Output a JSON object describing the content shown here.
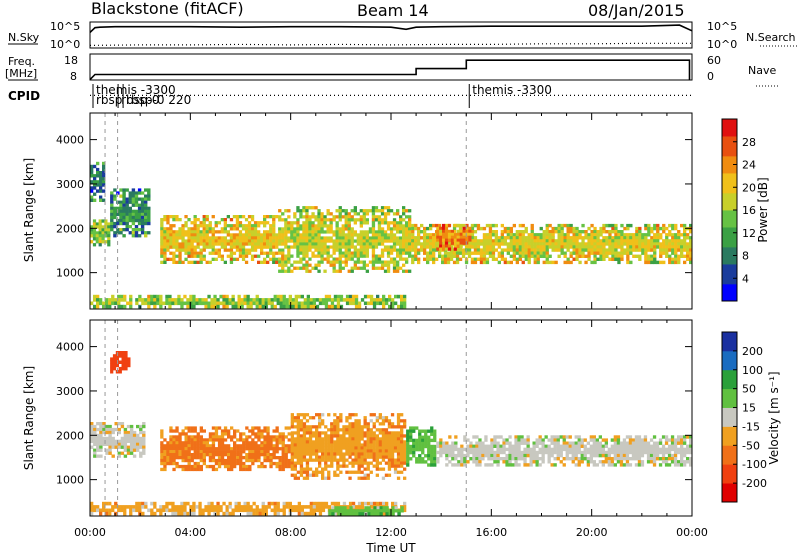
{
  "figure": {
    "station": "Blackstone (fitACF)",
    "beam": "Beam 14",
    "date": "08/Jan/2015"
  },
  "chart_data": [
    {
      "type": "line",
      "panel": "noise",
      "left_label": "N.Sky",
      "right_label": "N.Search",
      "y_ticks": [
        "10^5",
        "10^0"
      ],
      "right_ticks": [
        "10^5",
        "10^0"
      ],
      "x_range_hours": [
        0,
        24
      ],
      "series": [
        {
          "name": "N.Sky",
          "style": "solid",
          "x": [
            0,
            0.2,
            0.4,
            1,
            2,
            4,
            6,
            8,
            10,
            12,
            12.6,
            13,
            14,
            16,
            18,
            20,
            22,
            23.5,
            24
          ],
          "values": [
            3.0,
            3.9,
            4.0,
            4.1,
            4.1,
            4.1,
            4.0,
            4.1,
            4.1,
            4.0,
            3.6,
            4.0,
            4.1,
            4.2,
            4.2,
            4.2,
            4.2,
            4.4,
            3.3
          ]
        },
        {
          "name": "N.Search",
          "style": "dotted",
          "x": [
            0,
            2,
            4,
            6,
            8,
            10,
            12,
            14,
            16,
            18,
            20,
            22,
            24
          ],
          "values": [
            0.5,
            0.6,
            0.6,
            0.7,
            0.6,
            0.7,
            0.6,
            0.7,
            0.7,
            0.8,
            0.8,
            0.9,
            0.9
          ]
        }
      ]
    },
    {
      "type": "line",
      "panel": "frequency",
      "left_label": "Freq. [MHz]",
      "right_label": "Nave",
      "y_ticks": [
        "18",
        "8"
      ],
      "right_ticks": [
        "60",
        "0"
      ],
      "x_range_hours": [
        0,
        24
      ],
      "series": [
        {
          "name": "Freq.",
          "style": "solid",
          "x": [
            0,
            0.2,
            13,
            13,
            15,
            15,
            23.9,
            23.9
          ],
          "values": [
            8.2,
            10.5,
            10.5,
            13.2,
            13.2,
            17.0,
            17.0,
            8.0
          ]
        },
        {
          "name": "Nave",
          "style": "dotted",
          "x": [
            0,
            24
          ],
          "values": [
            1,
            1
          ]
        }
      ]
    },
    {
      "type": "table",
      "panel": "cpid",
      "label": "CPID",
      "markers": [
        {
          "time_h": 0.0,
          "text": "themis -3300"
        },
        {
          "time_h": 0.0,
          "text": "rbsp"
        },
        {
          "time_h": 1.0,
          "text": "rbsp-0"
        },
        {
          "time_h": 1.2,
          "text": "rbsp-0 220"
        },
        {
          "time_h": 15.0,
          "text": "themis -3300"
        }
      ]
    },
    {
      "type": "heatmap",
      "panel": "power",
      "ylabel": "Slant Range [km]",
      "ylim": [
        180,
        4600
      ],
      "y_ticks": [
        1000,
        2000,
        3000,
        4000
      ],
      "xlim": [
        0,
        24
      ],
      "colorbar_label": "Power [dB]",
      "colorbar_ticks": [
        4,
        8,
        12,
        16,
        20,
        24,
        28
      ],
      "colorbar_range": [
        0,
        32
      ],
      "vertical_lines_h": [
        0.6,
        1.1,
        15.0
      ],
      "bands": [
        {
          "x": [
            0.0,
            0.8
          ],
          "y": [
            1600,
            2200
          ],
          "value": 14
        },
        {
          "x": [
            0.8,
            2.4
          ],
          "y": [
            1800,
            2900
          ],
          "value": 10
        },
        {
          "x": [
            2.8,
            7.5
          ],
          "y": [
            1200,
            2300
          ],
          "value": 20
        },
        {
          "x": [
            7.5,
            12.8
          ],
          "y": [
            1000,
            2500
          ],
          "value": 18
        },
        {
          "x": [
            12.8,
            24.0
          ],
          "y": [
            1200,
            2100
          ],
          "value": 19
        },
        {
          "x": [
            0.0,
            12.6
          ],
          "y": [
            200,
            500
          ],
          "value": 16
        },
        {
          "x": [
            0.0,
            0.6
          ],
          "y": [
            2600,
            3500
          ],
          "value": 8
        },
        {
          "x": [
            13.8,
            15.2
          ],
          "y": [
            1500,
            2100
          ],
          "value": 24
        }
      ]
    },
    {
      "type": "heatmap",
      "panel": "velocity",
      "ylabel": "Slant Range [km]",
      "ylim": [
        180,
        4600
      ],
      "y_ticks": [
        1000,
        2000,
        3000,
        4000
      ],
      "xlim": [
        0,
        24
      ],
      "xlabel": "Time UT",
      "x_tick_labels": [
        "00:00",
        "04:00",
        "08:00",
        "12:00",
        "16:00",
        "20:00",
        "00:00"
      ],
      "colorbar_label": "Velocity [m s⁻¹]",
      "colorbar_ticks": [
        -200,
        -100,
        -50,
        -15,
        15,
        50,
        100,
        200
      ],
      "vertical_lines_h": [
        0.6,
        1.1,
        15.0
      ],
      "bands": [
        {
          "x": [
            0.0,
            2.2
          ],
          "y": [
            1500,
            2300
          ],
          "value": 0
        },
        {
          "x": [
            2.8,
            8.0
          ],
          "y": [
            1200,
            2200
          ],
          "value": -60
        },
        {
          "x": [
            8.0,
            12.6
          ],
          "y": [
            1000,
            2500
          ],
          "value": -40
        },
        {
          "x": [
            12.6,
            13.8
          ],
          "y": [
            1300,
            2200
          ],
          "value": 40
        },
        {
          "x": [
            13.8,
            24.0
          ],
          "y": [
            1300,
            2000
          ],
          "value": 0
        },
        {
          "x": [
            0.0,
            12.6
          ],
          "y": [
            200,
            500
          ],
          "value": -30
        },
        {
          "x": [
            9.5,
            12.5
          ],
          "y": [
            200,
            400
          ],
          "value": 30
        },
        {
          "x": [
            0.8,
            1.6
          ],
          "y": [
            3400,
            3900
          ],
          "value": -160
        }
      ]
    }
  ]
}
